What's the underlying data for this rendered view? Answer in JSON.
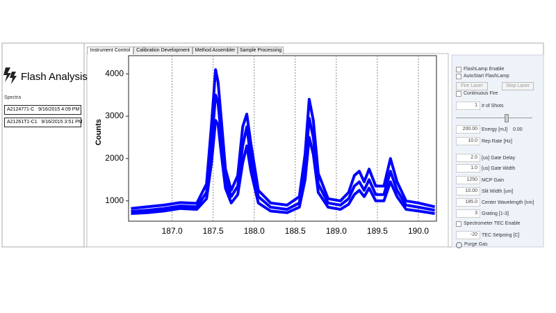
{
  "app": {
    "title": "Flash Analysis",
    "spectra_label": "Spectra",
    "spectra": [
      "A2124771-C   9/16/2015 4:09 PM",
      "A21261T1-C1   9/16/2015 3:51 PM"
    ],
    "tabs": [
      "Instrument Control",
      "Calibration Development",
      "Method Assembler",
      "Sample Processing"
    ],
    "checks": [
      "FlashLamp Enable",
      "AutoStart FlashLamp"
    ],
    "buttons": [
      "Fire Laser",
      "Stop Laser"
    ],
    "continuous": "Continuous Fire",
    "shots": {
      "value": "1",
      "label": "# of Shots"
    },
    "energy": {
      "value": "200.00",
      "label": "Energy [mJ]",
      "reading": "0.00"
    },
    "fields": [
      {
        "value": "10.0",
        "label": "Rep Rate [Hz]"
      },
      {
        "value": "2.0",
        "label": "[us] Gate Delay"
      },
      {
        "value": "1.0",
        "label": "[us] Gate Width"
      },
      {
        "value": "1250",
        "label": "MCP Gain"
      },
      {
        "value": "10.00",
        "label": "Slit Width [um]"
      },
      {
        "value": "185.0",
        "label": "Center Wavelength [nm]"
      },
      {
        "value": "3",
        "label": "Grating [1-3]"
      }
    ],
    "tec_enable": "Spectrometer TEC Enable",
    "tec": {
      "value": "-20",
      "label": "TEC Setpoing [C]"
    },
    "purge": "Purge Gas"
  },
  "chart_data": {
    "type": "line",
    "ylabel": "Counts",
    "x": [
      186.5,
      186.7,
      186.9,
      187.1,
      187.3,
      187.42,
      187.48,
      187.53,
      187.56,
      187.6,
      187.65,
      187.72,
      187.8,
      187.86,
      187.91,
      187.96,
      188.05,
      188.2,
      188.4,
      188.55,
      188.62,
      188.67,
      188.72,
      188.78,
      188.9,
      189.05,
      189.15,
      189.22,
      189.28,
      189.34,
      189.4,
      189.48,
      189.58,
      189.66,
      189.74,
      189.85,
      190.0,
      190.2
    ],
    "series": [
      {
        "color": "#0000ff",
        "values": [
          700,
          720,
          760,
          820,
          800,
          1050,
          1900,
          2900,
          2800,
          2100,
          1300,
          950,
          1150,
          1900,
          2300,
          1700,
          950,
          760,
          720,
          850,
          1500,
          2500,
          2100,
          1200,
          850,
          800,
          920,
          1150,
          1250,
          1100,
          1300,
          1000,
          1000,
          1450,
          1100,
          800,
          760,
          700
        ]
      },
      {
        "color": "#0000ff",
        "values": [
          750,
          780,
          820,
          880,
          860,
          1200,
          2300,
          3500,
          3300,
          2500,
          1500,
          1100,
          1350,
          2300,
          2750,
          2000,
          1100,
          850,
          800,
          950,
          1800,
          2950,
          2500,
          1400,
          950,
          900,
          1050,
          1350,
          1450,
          1250,
          1500,
          1150,
          1150,
          1700,
          1250,
          900,
          850,
          780
        ]
      },
      {
        "color": "#0000ff",
        "values": [
          820,
          860,
          900,
          960,
          940,
          1400,
          2800,
          4100,
          3800,
          2900,
          1750,
          1250,
          1600,
          2750,
          3050,
          2350,
          1250,
          950,
          900,
          1100,
          2100,
          3400,
          2900,
          1650,
          1050,
          1000,
          1200,
          1600,
          1700,
          1450,
          1750,
          1350,
          1350,
          2000,
          1450,
          1000,
          950,
          860
        ]
      }
    ],
    "xlim": [
      186.47,
      190.22
    ],
    "ylim": [
      520,
      4430
    ],
    "xticks": [
      {
        "value": 187,
        "label": "187.0"
      },
      {
        "value": 187.5,
        "label": "187.5"
      },
      {
        "value": 188,
        "label": "188.0"
      },
      {
        "value": 188.5,
        "label": "188.5"
      },
      {
        "value": 189,
        "label": "189.0"
      },
      {
        "value": 189.5,
        "label": "189.5"
      },
      {
        "value": 190,
        "label": "190.0"
      }
    ],
    "yticks": [
      1000,
      2000,
      3000,
      4000
    ],
    "grid": true
  }
}
